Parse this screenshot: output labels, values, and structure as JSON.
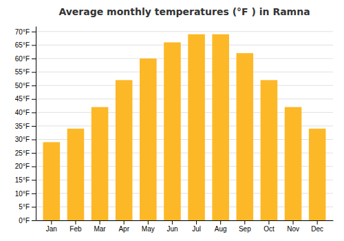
{
  "chart_data": {
    "type": "bar",
    "title": "Average monthly temperatures (°F ) in Ramna",
    "categories": [
      "Jan",
      "Feb",
      "Mar",
      "Apr",
      "May",
      "Jun",
      "Jul",
      "Aug",
      "Sep",
      "Oct",
      "Nov",
      "Dec"
    ],
    "values": [
      29,
      34,
      42,
      52,
      60,
      66,
      69,
      69,
      62,
      52,
      42,
      34
    ],
    "color": "#FDB827",
    "ylim": [
      0,
      72
    ],
    "yticks": [
      {
        "value": 0,
        "label": "0°F"
      },
      {
        "value": 5,
        "label": "5°F"
      },
      {
        "value": 10,
        "label": "10°F"
      },
      {
        "value": 15,
        "label": "15°F"
      },
      {
        "value": 20,
        "label": "20°F"
      },
      {
        "value": 25,
        "label": "25°F"
      },
      {
        "value": 30,
        "label": "30°F"
      },
      {
        "value": 35,
        "label": "35°F"
      },
      {
        "value": 40,
        "label": "40°F"
      },
      {
        "value": 45,
        "label": "45°F"
      },
      {
        "value": 50,
        "label": "50°F"
      },
      {
        "value": 55,
        "label": "55°F"
      },
      {
        "value": 60,
        "label": "60°F"
      },
      {
        "value": 65,
        "label": "65°F"
      },
      {
        "value": 70,
        "label": "70°F"
      }
    ],
    "grid": true
  }
}
